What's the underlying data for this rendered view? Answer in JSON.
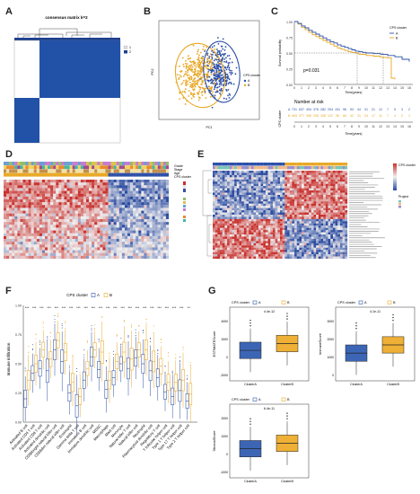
{
  "panels": {
    "A": {
      "letter": "A",
      "title": "consensus matrix k=2",
      "legend": [
        "1",
        "2"
      ],
      "colors": {
        "dark": "#2251a8",
        "light": "#ffffff"
      }
    },
    "B": {
      "letter": "B",
      "xlabel": "PC1",
      "ylabel": "PC2",
      "legend_title": "CPS cluster",
      "legend": [
        "A",
        "B"
      ],
      "colors": {
        "A": "#2c4fa8",
        "B": "#e8a825"
      }
    },
    "C": {
      "letter": "C",
      "ylabel": "Survival probability",
      "xlabel": "Time(years)",
      "legend_title": "CPS cluster",
      "legend": [
        "A",
        "B"
      ],
      "pvalue": "p=0.031",
      "risk_title": "Number at risk",
      "risk_ylabel": "CPS cluster",
      "risk_xlabel": "Time(years)",
      "time_ticks": [
        "0",
        "1",
        "2",
        "3",
        "4",
        "5",
        "6",
        "7",
        "8",
        "9",
        "10",
        "11",
        "12",
        "13",
        "14",
        "15",
        "16"
      ],
      "risk_rows": [
        {
          "label": "A",
          "values": [
            "731",
            "637",
            "494",
            "376",
            "282",
            "204",
            "151",
            "96",
            "53",
            "44",
            "31",
            "21",
            "12",
            "7",
            "5",
            "3",
            "2"
          ]
        },
        {
          "label": "B",
          "values": [
            "463",
            "377",
            "286",
            "208",
            "158",
            "122",
            "96",
            "66",
            "42",
            "31",
            "24",
            "17",
            "11",
            "7",
            "4",
            "2",
            "1"
          ]
        }
      ],
      "colors": {
        "A": "#2c4fa8",
        "B": "#e8a825"
      }
    },
    "D": {
      "letter": "D",
      "legend_labels": [
        "Grade",
        "Stage",
        "Age",
        "CPS cluster"
      ]
    },
    "E": {
      "letter": "E",
      "legend_labels": [
        "CPS cluster",
        "Project"
      ]
    },
    "F": {
      "letter": "F",
      "legend_title": "CPS cluster",
      "legend": [
        "A",
        "B"
      ],
      "ylabel": "Immune infiltration",
      "categories": [
        "Activated B cell",
        "Activated CD4 T cell",
        "Activated CD8 T cell",
        "Activated dendritic cell",
        "CD56bright natural killer cell",
        "CD56dim natural killer cell",
        "Eosinophil",
        "Gamma delta T cell",
        "Immature B cell",
        "Immature dendritic cell",
        "MDSC",
        "Macrophage",
        "Mast cell",
        "Monocyte",
        "Natural killer T cell",
        "Natural killer cell",
        "Neutrophil",
        "Plasmacytoid dendritic cell",
        "Regulatory T cell",
        "T follicular helper cell",
        "Type 1 T helper cell",
        "Type 17 T helper cell",
        "Type 2 T helper cell"
      ],
      "significance": [
        "***",
        "***",
        "***",
        "***",
        "***",
        "***",
        "***",
        "***",
        "***",
        "***",
        "***",
        "***",
        "***",
        "***",
        "***",
        "***",
        "***",
        "***",
        "***",
        "***",
        "***",
        "***",
        "**"
      ],
      "colors": {
        "A": "#2c4fa8",
        "B": "#e8a825"
      }
    },
    "G": {
      "letter": "G",
      "colors": {
        "A": "#2c5aa8",
        "B": "#e8a825"
      },
      "plots": [
        {
          "ylabel": "ESTIMATEScore",
          "pvalue": "4.4e-12",
          "legend_title": "CPS cluster",
          "legend": [
            "A",
            "B"
          ],
          "categories": [
            "ClusterA",
            "ClusterB"
          ],
          "yticks": [
            "-2000",
            "0",
            "2000",
            "4000"
          ]
        },
        {
          "ylabel": "ImmuneScore",
          "pvalue": "4.1e-11",
          "legend_title": "CPS cluster",
          "legend": [
            "A",
            "B"
          ],
          "categories": [
            "ClusterA",
            "ClusterB"
          ],
          "yticks": [
            "0",
            "1000",
            "2000",
            "3000"
          ]
        },
        {
          "ylabel": "StromalScore",
          "pvalue": "6.4e-11",
          "legend_title": "CPS cluster",
          "legend": [
            "A",
            "B"
          ],
          "categories": [
            "ClusterA",
            "ClusterB"
          ],
          "yticks": [
            "-1000",
            "0",
            "1000",
            "2000"
          ]
        }
      ]
    }
  }
}
